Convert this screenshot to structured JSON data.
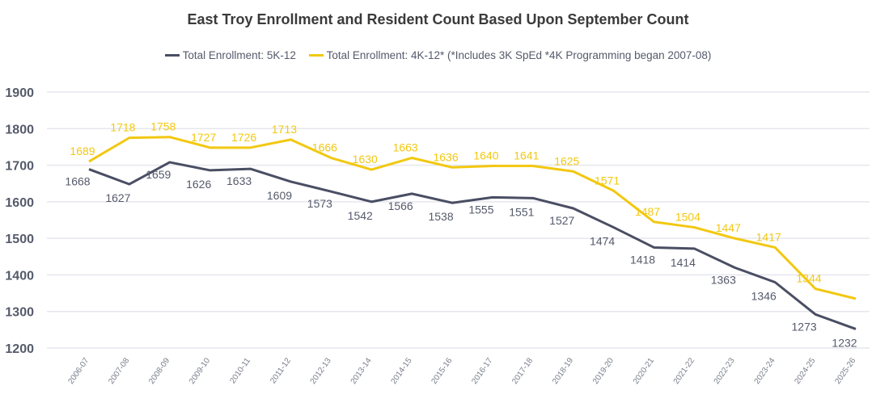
{
  "chart_data": {
    "type": "line",
    "title": "East Troy Enrollment and Resident Count Based Upon September Count",
    "xlabel": "",
    "ylabel": "",
    "ylim": [
      1200,
      1900
    ],
    "yticks": [
      1900,
      1800,
      1700,
      1600,
      1500,
      1400,
      1300,
      1200
    ],
    "grid": true,
    "legend_position": "top",
    "categories": [
      "2006-07",
      "2007-08",
      "2008-09",
      "2009-10",
      "2010-11",
      "2011-12",
      "2012-13",
      "2013-14",
      "2014-15",
      "2015-16",
      "2016-17",
      "2017-18",
      "2018-19",
      "2019-20",
      "2020-21",
      "2021-22",
      "2022-23",
      "2023-24",
      "2024-25",
      "2025-26"
    ],
    "series": [
      {
        "name": "Total Enrollment: 5K-12",
        "color": "#4a4e63",
        "values": [
          1689,
          1648,
          1708,
          1686,
          1690,
          1655,
          1628,
          1600,
          1622,
          1597,
          1612,
          1610,
          1582,
          1530,
          1475,
          1472,
          1420,
          1380,
          1292,
          1252
        ],
        "data_labels": [
          "1668",
          "1627",
          "1659",
          "1626",
          "1633",
          "1609",
          "1573",
          "1542",
          "1566",
          "1538",
          "1555",
          "1551",
          "1527",
          "1474",
          "1418",
          "1414",
          "1363",
          "1346",
          "1273",
          "1232"
        ]
      },
      {
        "name": "Total Enrollment: 4K-12* (*Includes 3K SpEd *4K Programming began 2007-08)",
        "color": "#f2c811",
        "values": [
          1710,
          1775,
          1777,
          1748,
          1748,
          1770,
          1720,
          1688,
          1720,
          1694,
          1698,
          1698,
          1683,
          1630,
          1545,
          1530,
          1500,
          1475,
          1362,
          1335
        ],
        "data_labels": [
          "1689",
          "1718",
          "1758",
          "1727",
          "1726",
          "1713",
          "1666",
          "1630",
          "1663",
          "1636",
          "1640",
          "1641",
          "1625",
          "1571",
          "1487",
          "1504",
          "1447",
          "1417",
          "1344",
          ""
        ]
      }
    ]
  }
}
